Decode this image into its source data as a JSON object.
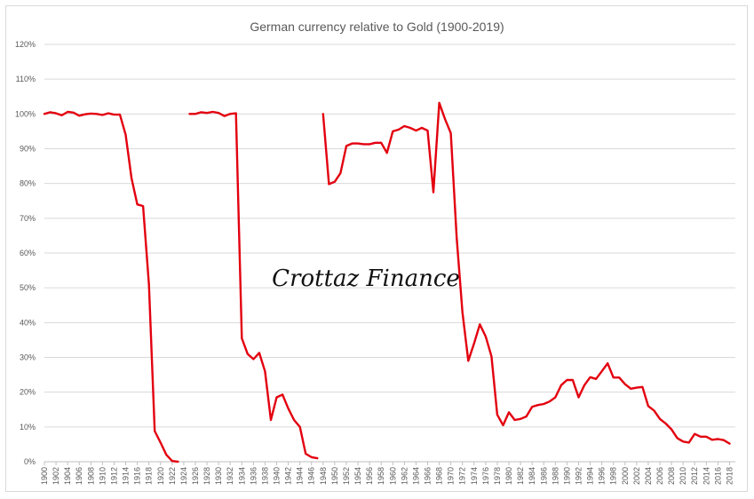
{
  "chart_data": {
    "type": "line",
    "title": "German currency relative to Gold (1900-2019)",
    "watermark": "Crottaz Finance",
    "xlabel": "",
    "ylabel": "",
    "ylim": [
      0,
      120
    ],
    "xlim": [
      1900,
      2019
    ],
    "grid": true,
    "legend": "none",
    "line_color": "#e3000f",
    "y_ticks": [
      "0%",
      "10%",
      "20%",
      "30%",
      "40%",
      "50%",
      "60%",
      "70%",
      "80%",
      "90%",
      "100%",
      "110%",
      "120%"
    ],
    "x_ticks": [
      "1900",
      "1902",
      "1904",
      "1906",
      "1908",
      "1910",
      "1912",
      "1914",
      "1916",
      "1918",
      "1920",
      "1922",
      "1924",
      "1926",
      "1928",
      "1930",
      "1932",
      "1934",
      "1936",
      "1938",
      "1940",
      "1942",
      "1944",
      "1946",
      "1948",
      "1950",
      "1952",
      "1954",
      "1956",
      "1958",
      "1960",
      "1962",
      "1964",
      "1966",
      "1968",
      "1970",
      "1972",
      "1974",
      "1976",
      "1978",
      "1980",
      "1982",
      "1984",
      "1986",
      "1988",
      "1990",
      "1992",
      "1994",
      "1996",
      "1998",
      "2000",
      "2002",
      "2004",
      "2006",
      "2008",
      "2010",
      "2012",
      "2014",
      "2016",
      "2018"
    ],
    "series": [
      {
        "values": [
          [
            1900,
            100
          ],
          [
            1901,
            100.5
          ],
          [
            1902,
            100.2
          ],
          [
            1903,
            99.6
          ],
          [
            1904,
            100.6
          ],
          [
            1905,
            100.4
          ],
          [
            1906,
            99.5
          ],
          [
            1907,
            99.9
          ],
          [
            1908,
            100.1
          ],
          [
            1909,
            100
          ],
          [
            1910,
            99.7
          ],
          [
            1911,
            100.2
          ],
          [
            1912,
            99.8
          ],
          [
            1913,
            99.8
          ],
          [
            1914,
            94
          ],
          [
            1915,
            81.5
          ],
          [
            1916,
            74
          ],
          [
            1917,
            73.5
          ],
          [
            1918,
            51
          ],
          [
            1919,
            8.8
          ],
          [
            1920,
            5.5
          ],
          [
            1921,
            2
          ],
          [
            1922,
            0.2
          ],
          [
            1923,
            0
          ]
        ]
      },
      {
        "values": [
          [
            1925,
            100
          ],
          [
            1926,
            100
          ],
          [
            1927,
            100.5
          ],
          [
            1928,
            100.3
          ],
          [
            1929,
            100.6
          ],
          [
            1930,
            100.3
          ],
          [
            1931,
            99.4
          ],
          [
            1932,
            100
          ],
          [
            1933,
            100.2
          ],
          [
            1934,
            35.5
          ],
          [
            1935,
            31
          ],
          [
            1936,
            29.5
          ],
          [
            1937,
            31.3
          ],
          [
            1938,
            26
          ],
          [
            1939,
            12
          ],
          [
            1940,
            18.5
          ],
          [
            1941,
            19.3
          ],
          [
            1942,
            15.3
          ],
          [
            1943,
            12
          ],
          [
            1944,
            10
          ],
          [
            1945,
            2.3
          ],
          [
            1946,
            1.3
          ],
          [
            1947,
            1
          ]
        ]
      },
      {
        "values": [
          [
            1948,
            100
          ],
          [
            1949,
            79.8
          ],
          [
            1950,
            80.5
          ],
          [
            1951,
            83
          ],
          [
            1952,
            90.8
          ],
          [
            1953,
            91.5
          ],
          [
            1954,
            91.5
          ],
          [
            1955,
            91.3
          ],
          [
            1956,
            91.3
          ],
          [
            1957,
            91.7
          ],
          [
            1958,
            91.7
          ],
          [
            1959,
            88.8
          ],
          [
            1960,
            95
          ],
          [
            1961,
            95.5
          ],
          [
            1962,
            96.5
          ],
          [
            1963,
            96
          ],
          [
            1964,
            95.2
          ],
          [
            1965,
            96
          ],
          [
            1966,
            95.2
          ],
          [
            1967,
            77.5
          ],
          [
            1968,
            103.2
          ],
          [
            1969,
            98.5
          ],
          [
            1970,
            94.5
          ],
          [
            1971,
            64.5
          ],
          [
            1972,
            43
          ],
          [
            1973,
            29
          ],
          [
            1974,
            34
          ],
          [
            1975,
            39.5
          ],
          [
            1976,
            36
          ],
          [
            1977,
            30.3
          ],
          [
            1978,
            13.5
          ],
          [
            1979,
            10.5
          ],
          [
            1980,
            14.2
          ],
          [
            1981,
            12
          ],
          [
            1982,
            12.3
          ],
          [
            1983,
            13
          ],
          [
            1984,
            15.8
          ],
          [
            1985,
            16.3
          ],
          [
            1986,
            16.6
          ],
          [
            1987,
            17.3
          ],
          [
            1988,
            18.5
          ],
          [
            1989,
            22
          ],
          [
            1990,
            23.5
          ],
          [
            1991,
            23.5
          ],
          [
            1992,
            18.5
          ],
          [
            1993,
            22
          ],
          [
            1994,
            24.3
          ],
          [
            1995,
            23.8
          ],
          [
            1996,
            26
          ],
          [
            1997,
            28.3
          ],
          [
            1998,
            24.2
          ],
          [
            1999,
            24.2
          ],
          [
            2000,
            22.3
          ],
          [
            2001,
            21
          ],
          [
            2002,
            21.3
          ],
          [
            2003,
            21.5
          ],
          [
            2004,
            16
          ],
          [
            2005,
            14.7
          ],
          [
            2006,
            12.3
          ],
          [
            2007,
            11
          ],
          [
            2008,
            9.3
          ],
          [
            2009,
            6.8
          ],
          [
            2010,
            5.8
          ],
          [
            2011,
            5.5
          ],
          [
            2012,
            8
          ],
          [
            2013,
            7.2
          ],
          [
            2014,
            7.2
          ],
          [
            2015,
            6.3
          ],
          [
            2016,
            6.5
          ],
          [
            2017,
            6.2
          ],
          [
            2018,
            5.2
          ]
        ]
      }
    ]
  }
}
